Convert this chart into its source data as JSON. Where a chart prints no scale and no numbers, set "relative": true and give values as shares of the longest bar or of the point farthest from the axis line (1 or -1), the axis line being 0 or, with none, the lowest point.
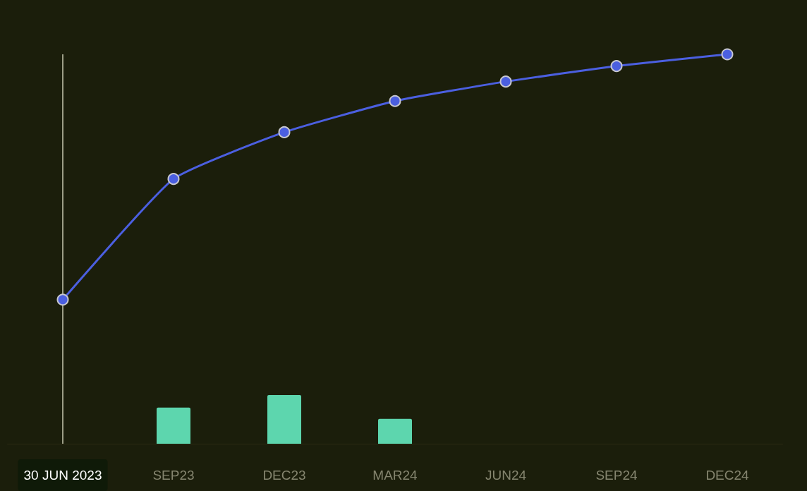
{
  "chart_data": {
    "type": "bar",
    "relative": true,
    "categories": [
      "30 JUN 2023",
      "SEP23",
      "DEC23",
      "MAR24",
      "JUN24",
      "SEP24",
      "DEC24"
    ],
    "series": [
      {
        "color": "#5dd6ae",
        "values": [
          null,
          0.093,
          0.125,
          0.064,
          null,
          null,
          null
        ]
      },
      {
        "type": "line",
        "color": "#4b5fe0",
        "marker": "circle",
        "values": [
          0.37,
          0.68,
          0.8,
          0.88,
          0.93,
          0.97,
          1
        ]
      }
    ],
    "ref_lines": [
      {
        "axis": "x",
        "value": "30 JUN 2023",
        "color": "#c8c8b0"
      }
    ],
    "grid": false
  }
}
